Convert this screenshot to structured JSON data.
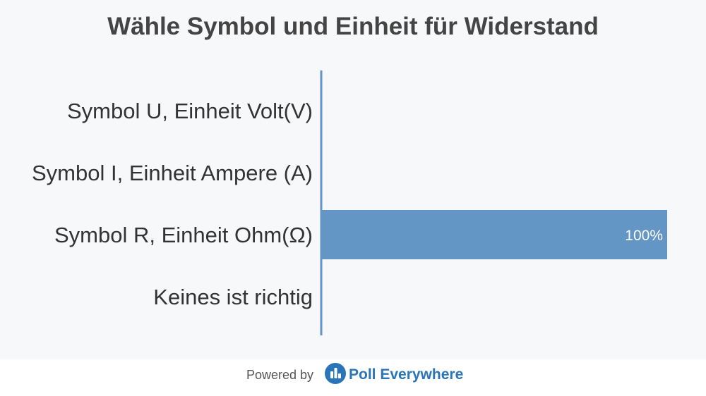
{
  "chart_data": {
    "type": "bar",
    "orientation": "horizontal",
    "title": "Wähle Symbol und Einheit für Widerstand",
    "categories": [
      "Symbol U, Einheit Volt(V)",
      "Symbol I, Einheit Ampere (A)",
      "Symbol R, Einheit Ohm(Ω)",
      "Keines ist richtig"
    ],
    "values": [
      0,
      0,
      100,
      0
    ],
    "value_labels": [
      "",
      "",
      "100%",
      ""
    ],
    "xlim": [
      0,
      100
    ],
    "grid": false,
    "bar_color": "#6395c5",
    "axis_color": "#6395c5"
  },
  "footer": {
    "powered_by": "Powered by",
    "brand": "Poll Everywhere",
    "brand_color": "#2a74b9",
    "logo_icon": "poll-everywhere-logo-icon"
  }
}
